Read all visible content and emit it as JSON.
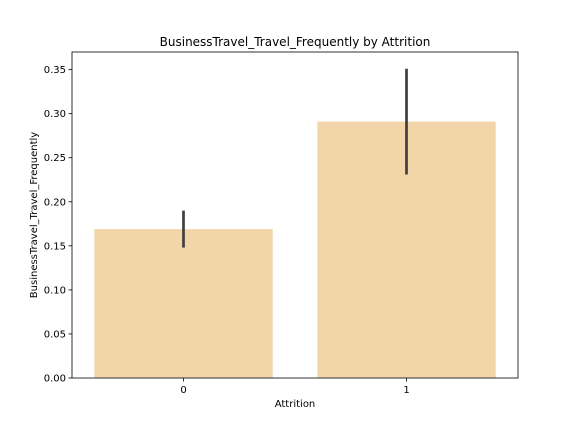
{
  "chart_data": {
    "type": "bar",
    "title": "BusinessTravel_Travel_Frequently by Attrition",
    "xlabel": "Attrition",
    "ylabel": "BusinessTravel_Travel_Frequently",
    "categories": [
      "0",
      "1"
    ],
    "values": [
      0.169,
      0.291
    ],
    "error_low": [
      0.148,
      0.231
    ],
    "error_high": [
      0.19,
      0.351
    ],
    "ylim": [
      0,
      0.37
    ],
    "yticks": [
      0.0,
      0.05,
      0.1,
      0.15,
      0.2,
      0.25,
      0.3,
      0.35
    ],
    "ytick_labels": [
      "0.00",
      "0.05",
      "0.10",
      "0.15",
      "0.20",
      "0.25",
      "0.30",
      "0.35"
    ],
    "bar_color": "#f2d6aa",
    "error_color": "#3f3f3f",
    "grid": false,
    "legend": "none"
  }
}
